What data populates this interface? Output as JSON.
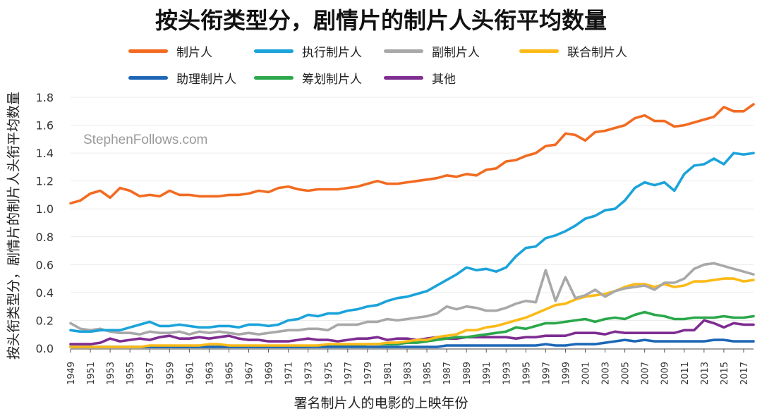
{
  "chart_data": {
    "type": "line",
    "title": "按头衔类型分，剧情片的制片人头衔平均数量",
    "xlabel": "署名制片人的电影的上映年份",
    "ylabel": "按头衔类型分，剧情片的制片人头衔平均数量",
    "watermark": "StephenFollows.com",
    "ylim": [
      0,
      1.8
    ],
    "yticks": [
      "0.0",
      "0.2",
      "0.4",
      "0.6",
      "0.8",
      "1.0",
      "1.2",
      "1.4",
      "1.6",
      "1.8"
    ],
    "x": [
      1949,
      1950,
      1951,
      1952,
      1953,
      1954,
      1955,
      1956,
      1957,
      1958,
      1959,
      1960,
      1961,
      1962,
      1963,
      1964,
      1965,
      1966,
      1967,
      1968,
      1969,
      1970,
      1971,
      1972,
      1973,
      1974,
      1975,
      1976,
      1977,
      1978,
      1979,
      1980,
      1981,
      1982,
      1983,
      1984,
      1985,
      1986,
      1987,
      1988,
      1989,
      1990,
      1991,
      1992,
      1993,
      1994,
      1995,
      1996,
      1997,
      1998,
      1999,
      2000,
      2001,
      2002,
      2003,
      2004,
      2005,
      2006,
      2007,
      2008,
      2009,
      2010,
      2011,
      2012,
      2013,
      2014,
      2015,
      2016,
      2017,
      2018
    ],
    "xticks": [
      "1949",
      "1951",
      "1953",
      "1955",
      "1957",
      "1959",
      "1961",
      "1963",
      "1965",
      "1967",
      "1969",
      "1971",
      "1973",
      "1975",
      "1977",
      "1979",
      "1981",
      "1983",
      "1985",
      "1987",
      "1989",
      "1991",
      "1993",
      "1995",
      "1997",
      "1999",
      "2001",
      "2003",
      "2005",
      "2007",
      "2009",
      "2011",
      "2013",
      "2015",
      "2017"
    ],
    "series": [
      {
        "name": "制片人",
        "color": "#F26B21",
        "values": [
          1.04,
          1.06,
          1.11,
          1.13,
          1.08,
          1.15,
          1.13,
          1.09,
          1.1,
          1.09,
          1.13,
          1.1,
          1.1,
          1.09,
          1.09,
          1.09,
          1.1,
          1.1,
          1.11,
          1.13,
          1.12,
          1.15,
          1.16,
          1.14,
          1.13,
          1.14,
          1.14,
          1.14,
          1.15,
          1.16,
          1.18,
          1.2,
          1.18,
          1.18,
          1.19,
          1.2,
          1.21,
          1.22,
          1.24,
          1.23,
          1.25,
          1.24,
          1.28,
          1.29,
          1.34,
          1.35,
          1.38,
          1.4,
          1.45,
          1.46,
          1.54,
          1.53,
          1.49,
          1.55,
          1.56,
          1.58,
          1.6,
          1.65,
          1.67,
          1.63,
          1.63,
          1.59,
          1.6,
          1.62,
          1.64,
          1.66,
          1.73,
          1.7,
          1.7,
          1.75
        ]
      },
      {
        "name": "执行制片人",
        "color": "#1BA3DA",
        "values": [
          0.13,
          0.12,
          0.12,
          0.13,
          0.13,
          0.13,
          0.15,
          0.17,
          0.19,
          0.16,
          0.16,
          0.17,
          0.16,
          0.15,
          0.15,
          0.16,
          0.16,
          0.15,
          0.17,
          0.17,
          0.16,
          0.17,
          0.2,
          0.21,
          0.24,
          0.23,
          0.25,
          0.25,
          0.27,
          0.28,
          0.3,
          0.31,
          0.34,
          0.36,
          0.37,
          0.39,
          0.41,
          0.45,
          0.49,
          0.53,
          0.58,
          0.56,
          0.57,
          0.55,
          0.58,
          0.66,
          0.72,
          0.73,
          0.79,
          0.81,
          0.84,
          0.88,
          0.93,
          0.95,
          0.99,
          1.0,
          1.06,
          1.15,
          1.19,
          1.17,
          1.19,
          1.13,
          1.25,
          1.31,
          1.32,
          1.36,
          1.32,
          1.4,
          1.39,
          1.4
        ]
      },
      {
        "name": "副制片人",
        "color": "#A8A8A8",
        "values": [
          0.18,
          0.14,
          0.13,
          0.14,
          0.12,
          0.11,
          0.11,
          0.1,
          0.12,
          0.11,
          0.11,
          0.12,
          0.1,
          0.12,
          0.11,
          0.12,
          0.11,
          0.1,
          0.11,
          0.1,
          0.11,
          0.12,
          0.13,
          0.13,
          0.14,
          0.14,
          0.13,
          0.17,
          0.17,
          0.17,
          0.19,
          0.19,
          0.21,
          0.2,
          0.21,
          0.22,
          0.23,
          0.25,
          0.3,
          0.28,
          0.3,
          0.29,
          0.27,
          0.27,
          0.29,
          0.32,
          0.34,
          0.33,
          0.56,
          0.34,
          0.51,
          0.36,
          0.38,
          0.42,
          0.37,
          0.41,
          0.43,
          0.44,
          0.45,
          0.42,
          0.47,
          0.47,
          0.5,
          0.57,
          0.6,
          0.61,
          0.59,
          0.57,
          0.55,
          0.53
        ]
      },
      {
        "name": "联合制片人",
        "color": "#FBBA18",
        "values": [
          0.01,
          0.01,
          0.01,
          0.01,
          0.01,
          0.01,
          0.01,
          0.01,
          0.02,
          0.02,
          0.02,
          0.02,
          0.02,
          0.02,
          0.03,
          0.03,
          0.02,
          0.02,
          0.02,
          0.02,
          0.02,
          0.02,
          0.02,
          0.02,
          0.02,
          0.02,
          0.03,
          0.03,
          0.03,
          0.03,
          0.03,
          0.03,
          0.04,
          0.04,
          0.05,
          0.06,
          0.06,
          0.08,
          0.09,
          0.1,
          0.13,
          0.13,
          0.15,
          0.16,
          0.18,
          0.2,
          0.22,
          0.25,
          0.28,
          0.31,
          0.32,
          0.35,
          0.37,
          0.38,
          0.39,
          0.41,
          0.44,
          0.46,
          0.46,
          0.44,
          0.46,
          0.44,
          0.45,
          0.48,
          0.48,
          0.49,
          0.5,
          0.5,
          0.48,
          0.49
        ]
      },
      {
        "name": "助理制片人",
        "color": "#1C66B5",
        "values": [
          0.01,
          0.01,
          0.01,
          0.01,
          0.01,
          0.01,
          0.01,
          0.01,
          0.01,
          0.01,
          0.01,
          0.01,
          0.01,
          0.01,
          0.01,
          0.01,
          0.01,
          0.01,
          0.01,
          0.01,
          0.01,
          0.01,
          0.01,
          0.01,
          0.01,
          0.01,
          0.01,
          0.01,
          0.01,
          0.01,
          0.01,
          0.01,
          0.01,
          0.01,
          0.01,
          0.01,
          0.01,
          0.01,
          0.02,
          0.02,
          0.02,
          0.02,
          0.02,
          0.02,
          0.02,
          0.02,
          0.02,
          0.02,
          0.03,
          0.02,
          0.02,
          0.03,
          0.03,
          0.03,
          0.04,
          0.05,
          0.06,
          0.05,
          0.06,
          0.05,
          0.05,
          0.05,
          0.05,
          0.05,
          0.05,
          0.06,
          0.06,
          0.05,
          0.05,
          0.05
        ]
      },
      {
        "name": "筹划制片人",
        "color": "#2AA84A",
        "values": [
          0.01,
          0.01,
          0.01,
          0.01,
          0.01,
          0.01,
          0.01,
          0.01,
          0.01,
          0.01,
          0.01,
          0.01,
          0.01,
          0.01,
          0.01,
          0.01,
          0.01,
          0.01,
          0.01,
          0.01,
          0.01,
          0.01,
          0.01,
          0.01,
          0.01,
          0.02,
          0.02,
          0.02,
          0.02,
          0.02,
          0.03,
          0.03,
          0.03,
          0.03,
          0.04,
          0.04,
          0.05,
          0.06,
          0.07,
          0.08,
          0.08,
          0.09,
          0.1,
          0.11,
          0.12,
          0.15,
          0.14,
          0.16,
          0.18,
          0.18,
          0.19,
          0.2,
          0.21,
          0.19,
          0.21,
          0.22,
          0.21,
          0.24,
          0.26,
          0.24,
          0.23,
          0.21,
          0.21,
          0.22,
          0.22,
          0.22,
          0.23,
          0.22,
          0.22,
          0.23
        ]
      },
      {
        "name": "其他",
        "color": "#7E2D91",
        "values": [
          0.03,
          0.03,
          0.03,
          0.04,
          0.07,
          0.05,
          0.06,
          0.07,
          0.06,
          0.08,
          0.09,
          0.07,
          0.07,
          0.08,
          0.07,
          0.08,
          0.09,
          0.07,
          0.06,
          0.06,
          0.05,
          0.05,
          0.05,
          0.06,
          0.07,
          0.06,
          0.06,
          0.05,
          0.06,
          0.07,
          0.07,
          0.08,
          0.06,
          0.07,
          0.07,
          0.06,
          0.07,
          0.08,
          0.07,
          0.07,
          0.08,
          0.08,
          0.08,
          0.08,
          0.08,
          0.07,
          0.08,
          0.08,
          0.09,
          0.09,
          0.09,
          0.11,
          0.11,
          0.11,
          0.1,
          0.12,
          0.11,
          0.11,
          0.11,
          0.11,
          0.11,
          0.11,
          0.13,
          0.13,
          0.2,
          0.18,
          0.15,
          0.18,
          0.17,
          0.17
        ]
      }
    ]
  }
}
